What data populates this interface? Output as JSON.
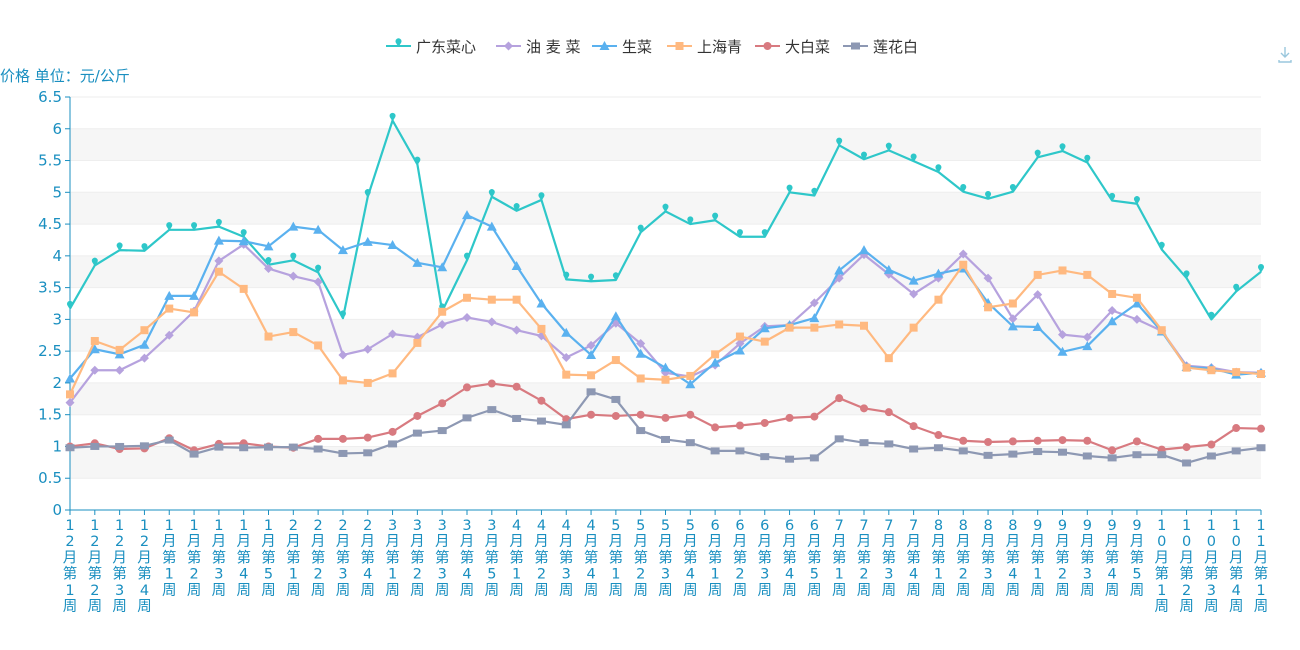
{
  "chart_data": {
    "type": "line",
    "ylabel": "价格 单位：元/公斤",
    "ylim": [
      0,
      6.5
    ],
    "yticks": [
      "0",
      "0.5",
      "1",
      "1.5",
      "2",
      "2.5",
      "3",
      "3.5",
      "4",
      "4.5",
      "5",
      "5.5",
      "6",
      "6.5"
    ],
    "grid": "horizontal bands",
    "legend_position": "top-center",
    "categories": [
      "12月第1周",
      "12月第2周",
      "12月第3周",
      "12月第4周",
      "1月第1周",
      "1月第2周",
      "1月第3周",
      "1月第4周",
      "1月第5周",
      "2月第1周",
      "2月第2周",
      "2月第3周",
      "2月第4周",
      "3月第1周",
      "3月第2周",
      "3月第3周",
      "3月第4周",
      "3月第5周",
      "4月第1周",
      "4月第2周",
      "4月第3周",
      "4月第4周",
      "5月第1周",
      "5月第2周",
      "5月第3周",
      "5月第4周",
      "6月第1周",
      "6月第2周",
      "6月第3周",
      "6月第4周",
      "6月第5周",
      "7月第1周",
      "7月第2周",
      "7月第3周",
      "7月第4周",
      "8月第1周",
      "8月第2周",
      "8月第3周",
      "8月第4周",
      "9月第1周",
      "9月第2周",
      "9月第3周",
      "9月第4周",
      "9月第5周",
      "10月第1周",
      "10月第2周",
      "10月第3周",
      "10月第4周",
      "11月第1周"
    ],
    "series": [
      {
        "name": "广东菜心",
        "color": "#2ec7c9",
        "marker": "pin",
        "values": [
          3.17,
          3.85,
          4.09,
          4.08,
          4.41,
          4.41,
          4.46,
          4.3,
          3.86,
          3.93,
          3.74,
          3.02,
          4.93,
          6.13,
          5.44,
          3.13,
          3.93,
          4.93,
          4.71,
          4.88,
          3.63,
          3.6,
          3.62,
          4.37,
          4.7,
          4.5,
          4.56,
          4.3,
          4.3,
          5.0,
          4.95,
          5.74,
          5.52,
          5.66,
          5.49,
          5.32,
          5.01,
          4.9,
          5.01,
          5.55,
          5.65,
          5.47,
          4.87,
          4.82,
          4.1,
          3.65,
          3.0,
          3.44,
          3.75
        ]
      },
      {
        "name": "油 麦 菜",
        "color": "#b6a2de",
        "marker": "diamond",
        "values": [
          1.69,
          2.2,
          2.2,
          2.39,
          2.75,
          3.13,
          3.92,
          4.18,
          3.8,
          3.68,
          3.59,
          2.44,
          2.53,
          2.77,
          2.72,
          2.92,
          3.03,
          2.96,
          2.83,
          2.74,
          2.4,
          2.59,
          2.94,
          2.62,
          2.16,
          2.1,
          2.28,
          2.62,
          2.89,
          2.91,
          3.26,
          3.65,
          4.02,
          3.71,
          3.4,
          3.65,
          4.03,
          3.65,
          3.01,
          3.39,
          2.76,
          2.72,
          3.14,
          3.0,
          2.82,
          2.27,
          2.24,
          2.17,
          2.16
        ]
      },
      {
        "name": "生菜",
        "color": "#5ab1ef",
        "marker": "triangle",
        "values": [
          2.07,
          2.53,
          2.45,
          2.6,
          3.37,
          3.37,
          4.24,
          4.23,
          4.15,
          4.46,
          4.41,
          4.09,
          4.22,
          4.17,
          3.89,
          3.82,
          4.64,
          4.46,
          3.84,
          3.25,
          2.79,
          2.44,
          3.05,
          2.46,
          2.24,
          1.98,
          2.32,
          2.51,
          2.86,
          2.91,
          3.02,
          3.77,
          4.09,
          3.78,
          3.61,
          3.72,
          3.8,
          3.26,
          2.89,
          2.88,
          2.49,
          2.58,
          2.97,
          3.25,
          2.81,
          2.25,
          2.23,
          2.13,
          2.16
        ]
      },
      {
        "name": "上海青",
        "color": "#ffb980",
        "marker": "square",
        "values": [
          1.82,
          2.66,
          2.52,
          2.83,
          3.17,
          3.11,
          3.75,
          3.48,
          2.73,
          2.8,
          2.59,
          2.04,
          2.0,
          2.15,
          2.63,
          3.12,
          3.34,
          3.31,
          3.31,
          2.85,
          2.13,
          2.12,
          2.36,
          2.07,
          2.05,
          2.11,
          2.45,
          2.73,
          2.65,
          2.87,
          2.87,
          2.92,
          2.9,
          2.39,
          2.87,
          3.31,
          3.86,
          3.19,
          3.25,
          3.7,
          3.77,
          3.7,
          3.4,
          3.34,
          2.83,
          2.24,
          2.2,
          2.17,
          2.14
        ]
      },
      {
        "name": "大白菜",
        "color": "#d87a80",
        "marker": "circle",
        "values": [
          1.0,
          1.05,
          0.96,
          0.97,
          1.13,
          0.94,
          1.04,
          1.05,
          1.0,
          0.98,
          1.12,
          1.12,
          1.14,
          1.23,
          1.48,
          1.68,
          1.93,
          1.99,
          1.94,
          1.72,
          1.43,
          1.5,
          1.48,
          1.5,
          1.45,
          1.5,
          1.3,
          1.33,
          1.37,
          1.45,
          1.47,
          1.76,
          1.6,
          1.54,
          1.32,
          1.18,
          1.09,
          1.07,
          1.08,
          1.09,
          1.1,
          1.09,
          0.94,
          1.08,
          0.95,
          0.99,
          1.03,
          1.29,
          1.28
        ]
      },
      {
        "name": "莲花白",
        "color": "#8d98b3",
        "marker": "rect",
        "values": [
          0.98,
          1.0,
          1.0,
          1.01,
          1.1,
          0.88,
          0.99,
          0.98,
          0.99,
          0.99,
          0.96,
          0.89,
          0.9,
          1.04,
          1.21,
          1.25,
          1.45,
          1.58,
          1.44,
          1.4,
          1.34,
          1.86,
          1.74,
          1.25,
          1.11,
          1.06,
          0.93,
          0.93,
          0.84,
          0.8,
          0.82,
          1.12,
          1.06,
          1.04,
          0.96,
          0.98,
          0.93,
          0.86,
          0.88,
          0.92,
          0.91,
          0.85,
          0.82,
          0.87,
          0.87,
          0.74,
          0.85,
          0.93,
          0.98
        ]
      }
    ]
  }
}
